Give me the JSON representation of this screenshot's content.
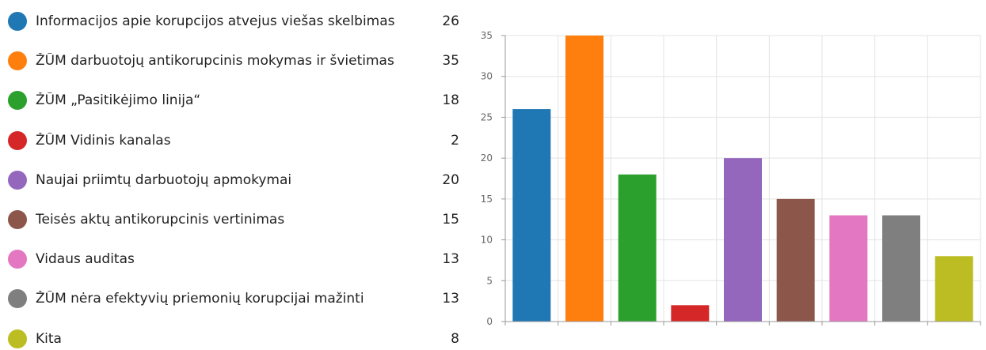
{
  "chart_data": {
    "type": "bar",
    "categories": [
      "Informacijos apie korupcijos atvejus viešas skelbimas",
      "ŽŪM darbuotojų antikorupcinis mokymas ir švietimas",
      "ŽŪM „Pasitikėjimo linija“",
      "ŽŪM Vidinis kanalas",
      "Naujai priimtų darbuotojų apmokymai",
      "Teisės aktų antikorupcinis vertinimas",
      "Vidaus auditas",
      "ŽŪM nėra efektyvių priemonių korupcijai mažinti",
      "Kita"
    ],
    "values": [
      26,
      35,
      18,
      2,
      20,
      15,
      13,
      13,
      8
    ],
    "value_labels": [
      "26",
      "35",
      "18",
      "2",
      "20",
      "15",
      "13",
      "13",
      "8"
    ],
    "colors": [
      "#1f77b4",
      "#ff7f0e",
      "#2ca02c",
      "#d62728",
      "#9467bd",
      "#8c564b",
      "#e377c2",
      "#7f7f7f",
      "#bcbd22"
    ],
    "ylim": [
      0,
      35
    ],
    "yticks": [
      0,
      5,
      10,
      15,
      20,
      25,
      30,
      35
    ],
    "ytick_labels": [
      "0",
      "5",
      "10",
      "15",
      "20",
      "25",
      "30",
      "35"
    ],
    "grid": true,
    "legend_position": "left",
    "title": "",
    "xlabel": "",
    "ylabel": ""
  }
}
